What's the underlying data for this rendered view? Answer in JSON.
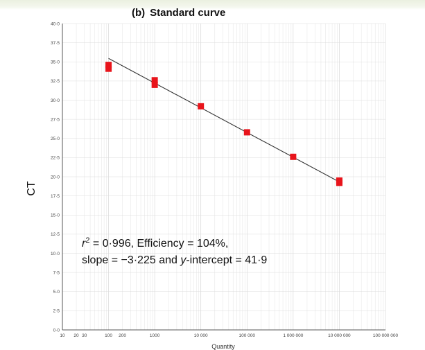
{
  "chart_data": {
    "type": "scatter",
    "title_prefix": "(b)",
    "title": "Standard curve",
    "xlabel": "Quantity",
    "ylabel": "CT",
    "x_scale": "log",
    "xlim": [
      10,
      100000000
    ],
    "ylim": [
      0,
      40
    ],
    "grid": true,
    "x_ticks": [
      {
        "value": 10,
        "label": "10"
      },
      {
        "value": 20,
        "label": "20"
      },
      {
        "value": 30,
        "label": "30"
      },
      {
        "value": 100,
        "label": "100"
      },
      {
        "value": 200,
        "label": "200"
      },
      {
        "value": 1000,
        "label": "1000"
      },
      {
        "value": 10000,
        "label": "10 000"
      },
      {
        "value": 100000,
        "label": "100 000"
      },
      {
        "value": 1000000,
        "label": "1 000 000"
      },
      {
        "value": 10000000,
        "label": "10 000 000"
      },
      {
        "value": 100000000,
        "label": "100 000 000"
      }
    ],
    "y_ticks": [
      {
        "value": 0,
        "label": "0·0"
      },
      {
        "value": 2.5,
        "label": "2·5"
      },
      {
        "value": 5,
        "label": "5·0"
      },
      {
        "value": 7.5,
        "label": "7·5"
      },
      {
        "value": 10,
        "label": "10·0"
      },
      {
        "value": 12.5,
        "label": "12·5"
      },
      {
        "value": 15,
        "label": "15·0"
      },
      {
        "value": 17.5,
        "label": "17·5"
      },
      {
        "value": 20,
        "label": "20·0"
      },
      {
        "value": 22.5,
        "label": "22·5"
      },
      {
        "value": 25,
        "label": "25·0"
      },
      {
        "value": 27.5,
        "label": "27·5"
      },
      {
        "value": 30,
        "label": "30·0"
      },
      {
        "value": 32.5,
        "label": "32·5"
      },
      {
        "value": 35,
        "label": "35·0"
      },
      {
        "value": 37.5,
        "label": "37·5"
      },
      {
        "value": 40,
        "label": "40·0"
      }
    ],
    "points": [
      {
        "x": 100,
        "y": 34.6
      },
      {
        "x": 100,
        "y": 34.1
      },
      {
        "x": 1000,
        "y": 32.6
      },
      {
        "x": 1000,
        "y": 32.0
      },
      {
        "x": 10000,
        "y": 29.2
      },
      {
        "x": 100000,
        "y": 25.8
      },
      {
        "x": 1000000,
        "y": 22.6
      },
      {
        "x": 10000000,
        "y": 19.5
      },
      {
        "x": 10000000,
        "y": 19.2
      }
    ],
    "regression": {
      "slope": -3.225,
      "intercept": 41.9,
      "x_from": 100,
      "x_to": 10000000
    },
    "marker_color": "#e8141b",
    "line_color": "#333333",
    "annotation": {
      "line1": {
        "r": "r",
        "sup": "2",
        "rest": " = 0·996, Efficiency = 104%,"
      },
      "line2": {
        "pre": "slope = −3·225 and ",
        "ital": "y",
        "post": "-intercept = 41·9"
      }
    }
  }
}
